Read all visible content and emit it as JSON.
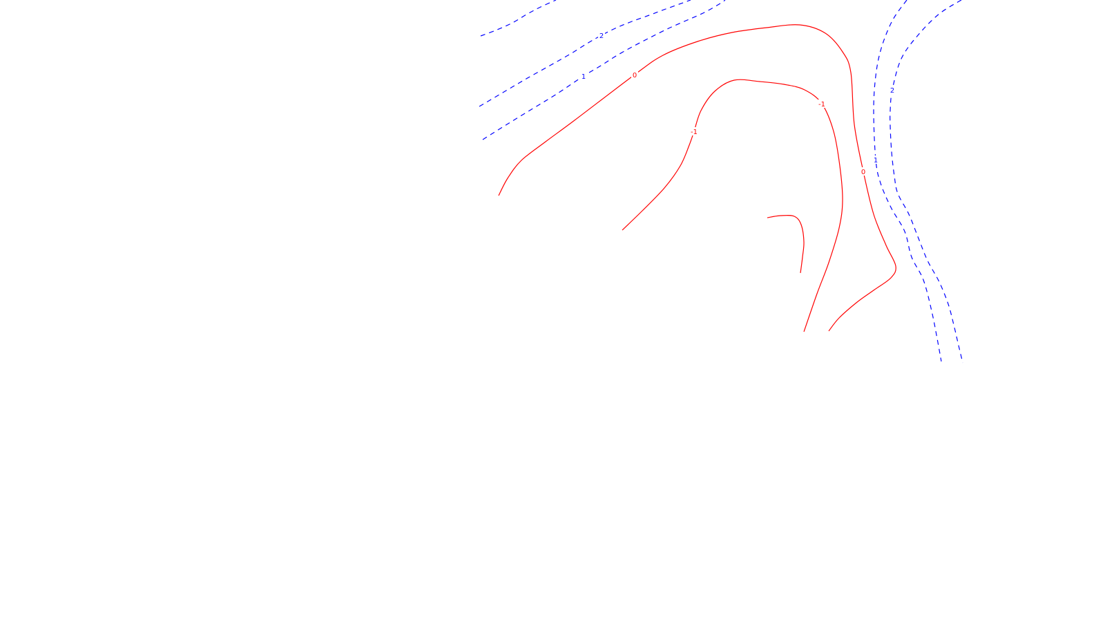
{
  "chart_data": {
    "type": "contour",
    "title": "",
    "xlabel": "",
    "ylabel": "",
    "colors": {
      "positive": "#0000ff",
      "negative": "#ff0000",
      "zero": "#ff0000",
      "background": "#ffffff"
    },
    "styles": {
      "positive": "dashed",
      "negative": "solid",
      "zero": "solid"
    },
    "levels": [
      {
        "id": "level-2-upper-left",
        "level": 2,
        "label": "2",
        "sign": "positive",
        "points": [
          [
            696,
            52
          ],
          [
            720,
            43
          ],
          [
            742,
            33
          ],
          [
            764,
            20
          ],
          [
            783,
            10
          ],
          [
            805,
            0
          ]
        ]
      },
      {
        "id": "level-2-diagonal",
        "level": 2,
        "label": "2",
        "sign": "positive",
        "labelIndex": 6,
        "points": [
          [
            694,
            154
          ],
          [
            728,
            134
          ],
          [
            762,
            114
          ],
          [
            796,
            95
          ],
          [
            826,
            78
          ],
          [
            850,
            63
          ],
          [
            871,
            51
          ],
          [
            893,
            40
          ],
          [
            915,
            31
          ],
          [
            940,
            22
          ],
          [
            964,
            13
          ],
          [
            992,
            3
          ],
          [
            1000,
            0
          ]
        ]
      },
      {
        "id": "level-1-diagonal",
        "level": 1,
        "label": "1",
        "sign": "positive",
        "labelIndex": 4,
        "points": [
          [
            699,
            202
          ],
          [
            734,
            180
          ],
          [
            770,
            158
          ],
          [
            806,
            136
          ],
          [
            845,
            110
          ],
          [
            870,
            95
          ],
          [
            892,
            81
          ],
          [
            915,
            68
          ],
          [
            940,
            55
          ],
          [
            966,
            42
          ],
          [
            993,
            30
          ],
          [
            1020,
            18
          ],
          [
            1043,
            5
          ],
          [
            1050,
            0
          ]
        ]
      },
      {
        "id": "level-2-right",
        "level": 2,
        "label": "2",
        "sign": "positive",
        "labelIndex": 4,
        "points": [
          [
            1392,
            0
          ],
          [
            1360,
            20
          ],
          [
            1330,
            50
          ],
          [
            1305,
            85
          ],
          [
            1292,
            130
          ],
          [
            1289,
            160
          ],
          [
            1289,
            182
          ],
          [
            1291,
            220
          ],
          [
            1295,
            255
          ],
          [
            1300,
            280
          ],
          [
            1316,
            310
          ],
          [
            1330,
            345
          ],
          [
            1343,
            377
          ],
          [
            1360,
            408
          ],
          [
            1373,
            440
          ],
          [
            1381,
            470
          ],
          [
            1388,
            500
          ],
          [
            1394,
            525
          ]
        ]
      },
      {
        "id": "level-1-right",
        "level": 1,
        "label": "1",
        "sign": "positive",
        "labelIndex": 5,
        "points": [
          [
            1313,
            0
          ],
          [
            1292,
            30
          ],
          [
            1276,
            70
          ],
          [
            1268,
            110
          ],
          [
            1265,
            160
          ],
          [
            1268,
            231
          ],
          [
            1275,
            265
          ],
          [
            1290,
            300
          ],
          [
            1310,
            335
          ],
          [
            1320,
            372
          ],
          [
            1337,
            405
          ],
          [
            1349,
            450
          ],
          [
            1357,
            490
          ],
          [
            1363,
            523
          ]
        ]
      },
      {
        "id": "level-0-main",
        "level": 0,
        "label": "0",
        "sign": "zero",
        "labelIndex": 5,
        "labelIndex2": 15,
        "points": [
          [
            722,
            283
          ],
          [
            735,
            258
          ],
          [
            755,
            232
          ],
          [
            790,
            205
          ],
          [
            832,
            174
          ],
          [
            919,
            108
          ],
          [
            960,
            80
          ],
          [
            1010,
            60
          ],
          [
            1060,
            47
          ],
          [
            1110,
            40
          ],
          [
            1158,
            36
          ],
          [
            1195,
            48
          ],
          [
            1220,
            75
          ],
          [
            1232,
            105
          ],
          [
            1237,
            180
          ],
          [
            1250,
            248
          ],
          [
            1265,
            310
          ],
          [
            1283,
            355
          ],
          [
            1297,
            385
          ],
          [
            1290,
            402
          ],
          [
            1265,
            420
          ],
          [
            1240,
            438
          ],
          [
            1215,
            460
          ],
          [
            1200,
            479
          ]
        ]
      },
      {
        "id": "level-neg1-main",
        "level": -1,
        "label": "-1",
        "sign": "negative",
        "labelIndex": 5,
        "labelIndex2": 12,
        "points": [
          [
            901,
            333
          ],
          [
            930,
            305
          ],
          [
            962,
            272
          ],
          [
            985,
            240
          ],
          [
            998,
            210
          ],
          [
            1005,
            190
          ],
          [
            1015,
            160
          ],
          [
            1035,
            132
          ],
          [
            1063,
            116
          ],
          [
            1100,
            118
          ],
          [
            1135,
            122
          ],
          [
            1165,
            130
          ],
          [
            1190,
            150
          ],
          [
            1207,
            190
          ],
          [
            1216,
            240
          ],
          [
            1220,
            290
          ],
          [
            1215,
            330
          ],
          [
            1200,
            380
          ],
          [
            1183,
            425
          ],
          [
            1164,
            480
          ]
        ]
      },
      {
        "id": "level-neg1-small",
        "level": -1,
        "label": "",
        "sign": "negative",
        "points": [
          [
            1111,
            315
          ],
          [
            1130,
            312
          ],
          [
            1150,
            313
          ],
          [
            1160,
            325
          ],
          [
            1164,
            350
          ],
          [
            1162,
            372
          ],
          [
            1159,
            395
          ]
        ]
      }
    ]
  }
}
